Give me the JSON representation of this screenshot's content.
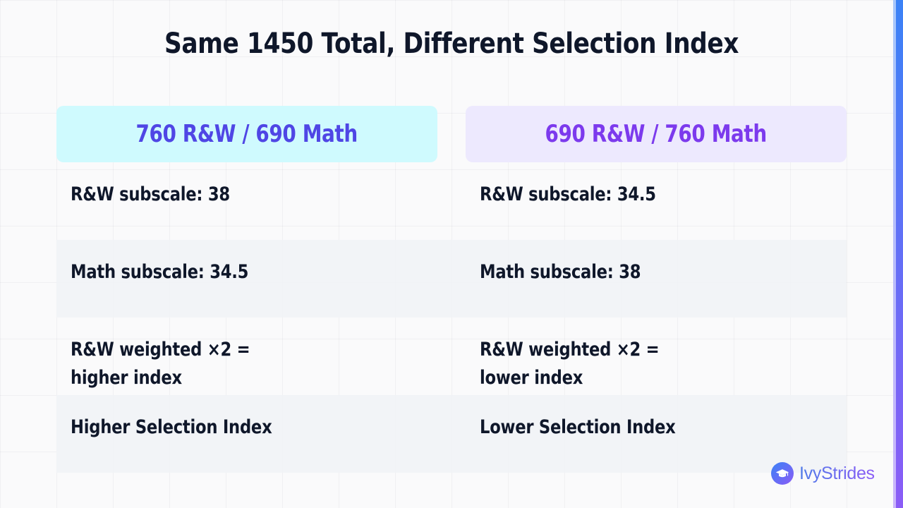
{
  "slide": {
    "title": "Same 1450 Total, Different Selection Index"
  },
  "columns": [
    {
      "header": "760 R&W / 690 Math",
      "header_color": "#4f46e5",
      "header_bg": "#cffafe",
      "rows": [
        "R&W subscale: 38",
        "Math subscale: 34.5",
        "R&W weighted ×2 = higher index",
        "Higher Selection Index"
      ]
    },
    {
      "header": "690 R&W / 760 Math",
      "header_color": "#7c3aed",
      "header_bg": "#ede9fe",
      "rows": [
        "R&W subscale: 34.5",
        "Math subscale: 38",
        "R&W weighted ×2 = lower index",
        "Lower Selection Index"
      ]
    }
  ],
  "brand": {
    "name": "IvyStrides",
    "logo_icon": "graduation-cap-icon"
  },
  "colors": {
    "accent_start": "#3b82f6",
    "accent_end": "#8b5cf6",
    "text": "#0f172a"
  }
}
